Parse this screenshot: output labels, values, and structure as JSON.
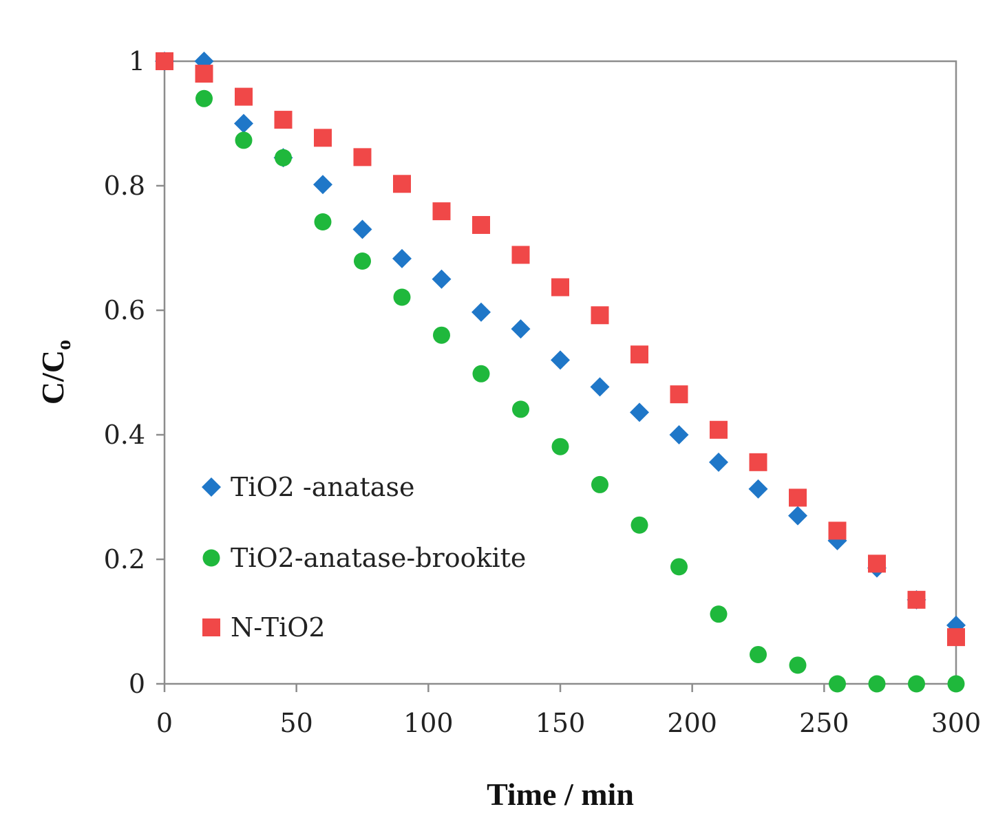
{
  "chart_data": {
    "type": "scatter",
    "title": "",
    "xlabel": "Time / min",
    "ylabel_main": "C/C",
    "ylabel_sub": "o",
    "xlim": [
      0,
      300
    ],
    "ylim": [
      0,
      1
    ],
    "xticks": [
      "0",
      "50",
      "100",
      "150",
      "200",
      "250",
      "300"
    ],
    "yticks": [
      "0",
      "0.2",
      "0.4",
      "0.6",
      "0.8",
      "1"
    ],
    "grid": false,
    "legend_position": "lower-left",
    "series": [
      {
        "name": "TiO2 -anatase",
        "marker": "diamond",
        "color": "#1f77c8",
        "x": [
          0,
          15,
          30,
          45,
          60,
          75,
          90,
          105,
          120,
          135,
          150,
          165,
          180,
          195,
          210,
          225,
          240,
          255,
          270,
          285,
          300
        ],
        "y": [
          1.0,
          1.0,
          0.9,
          0.845,
          0.802,
          0.73,
          0.683,
          0.65,
          0.597,
          0.57,
          0.52,
          0.477,
          0.436,
          0.4,
          0.356,
          0.313,
          0.27,
          0.23,
          0.186,
          0.135,
          0.094
        ]
      },
      {
        "name": "TiO2-anatase-brookite",
        "marker": "circle",
        "color": "#1fb83c",
        "x": [
          0,
          15,
          30,
          45,
          60,
          75,
          90,
          105,
          120,
          135,
          150,
          165,
          180,
          195,
          210,
          225,
          240,
          255,
          270,
          285,
          300
        ],
        "y": [
          1.0,
          0.94,
          0.873,
          0.845,
          0.742,
          0.679,
          0.621,
          0.56,
          0.498,
          0.441,
          0.381,
          0.32,
          0.255,
          0.188,
          0.112,
          0.047,
          0.03,
          0.0,
          0.0,
          0.0,
          0.0
        ]
      },
      {
        "name": "N-TiO2",
        "marker": "square",
        "color": "#f04848",
        "x": [
          0,
          15,
          30,
          45,
          60,
          75,
          90,
          105,
          120,
          135,
          150,
          165,
          180,
          195,
          210,
          225,
          240,
          255,
          270,
          285,
          300
        ],
        "y": [
          1.0,
          0.98,
          0.943,
          0.906,
          0.877,
          0.846,
          0.803,
          0.759,
          0.737,
          0.689,
          0.637,
          0.592,
          0.529,
          0.465,
          0.408,
          0.356,
          0.299,
          0.246,
          0.193,
          0.135,
          0.075
        ]
      }
    ]
  }
}
